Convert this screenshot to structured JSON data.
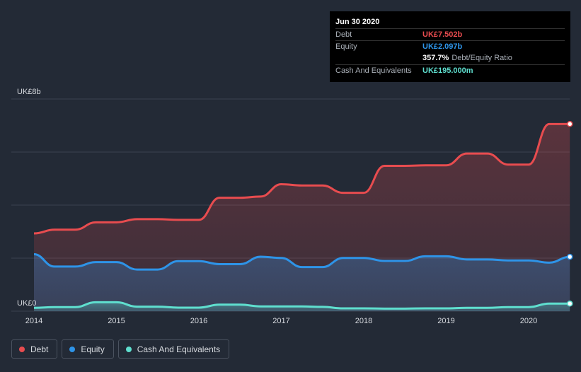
{
  "chart_data": {
    "type": "area",
    "y_axis": {
      "top_label": "UK£8b",
      "bottom_label": "UK£0",
      "ylim": [
        0,
        8
      ]
    },
    "x_ticks": [
      "2014",
      "2015",
      "2016",
      "2017",
      "2018",
      "2019",
      "2020"
    ],
    "series": [
      {
        "name": "Debt",
        "color": "#e84c4f",
        "points": [
          [
            2014.0,
            3.05
          ],
          [
            2014.25,
            3.2
          ],
          [
            2014.5,
            3.2
          ],
          [
            2014.75,
            3.5
          ],
          [
            2015.0,
            3.5
          ],
          [
            2015.25,
            3.63
          ],
          [
            2015.5,
            3.63
          ],
          [
            2015.75,
            3.6
          ],
          [
            2016.0,
            3.6
          ],
          [
            2016.25,
            4.5
          ],
          [
            2016.5,
            4.5
          ],
          [
            2016.75,
            4.55
          ],
          [
            2017.0,
            5.05
          ],
          [
            2017.25,
            5.0
          ],
          [
            2017.5,
            5.0
          ],
          [
            2017.75,
            4.7
          ],
          [
            2018.0,
            4.7
          ],
          [
            2018.25,
            5.8
          ],
          [
            2018.5,
            5.8
          ],
          [
            2018.75,
            5.82
          ],
          [
            2019.0,
            5.82
          ],
          [
            2019.25,
            6.3
          ],
          [
            2019.5,
            6.3
          ],
          [
            2019.75,
            5.85
          ],
          [
            2020.0,
            5.85
          ],
          [
            2020.25,
            7.5
          ],
          [
            2020.5,
            7.502
          ]
        ]
      },
      {
        "name": "Equity",
        "color": "#2e94e8",
        "points": [
          [
            2014.0,
            2.2
          ],
          [
            2014.25,
            1.7
          ],
          [
            2014.5,
            1.7
          ],
          [
            2014.75,
            1.88
          ],
          [
            2015.0,
            1.88
          ],
          [
            2015.25,
            1.58
          ],
          [
            2015.5,
            1.58
          ],
          [
            2015.75,
            1.92
          ],
          [
            2016.0,
            1.92
          ],
          [
            2016.25,
            1.8
          ],
          [
            2016.5,
            1.8
          ],
          [
            2016.75,
            2.1
          ],
          [
            2017.0,
            2.05
          ],
          [
            2017.25,
            1.68
          ],
          [
            2017.5,
            1.68
          ],
          [
            2017.75,
            2.05
          ],
          [
            2018.0,
            2.05
          ],
          [
            2018.25,
            1.93
          ],
          [
            2018.5,
            1.93
          ],
          [
            2018.75,
            2.12
          ],
          [
            2019.0,
            2.12
          ],
          [
            2019.25,
            1.99
          ],
          [
            2019.5,
            1.99
          ],
          [
            2019.75,
            1.95
          ],
          [
            2020.0,
            1.95
          ],
          [
            2020.25,
            1.86
          ],
          [
            2020.5,
            2.097
          ]
        ]
      },
      {
        "name": "Cash And Equivalents",
        "color": "#5fdfcf",
        "points": [
          [
            2014.0,
            0.02
          ],
          [
            2014.25,
            0.05
          ],
          [
            2014.5,
            0.05
          ],
          [
            2014.75,
            0.25
          ],
          [
            2015.0,
            0.25
          ],
          [
            2015.25,
            0.07
          ],
          [
            2015.5,
            0.07
          ],
          [
            2015.75,
            0.03
          ],
          [
            2016.0,
            0.03
          ],
          [
            2016.25,
            0.15
          ],
          [
            2016.5,
            0.15
          ],
          [
            2016.75,
            0.08
          ],
          [
            2017.0,
            0.08
          ],
          [
            2017.25,
            0.08
          ],
          [
            2017.5,
            0.06
          ],
          [
            2017.75,
            0.0
          ],
          [
            2018.0,
            0.0
          ],
          [
            2018.25,
            -0.01
          ],
          [
            2018.5,
            -0.01
          ],
          [
            2018.75,
            0.0
          ],
          [
            2019.0,
            0.0
          ],
          [
            2019.25,
            0.02
          ],
          [
            2019.5,
            0.02
          ],
          [
            2019.75,
            0.05
          ],
          [
            2020.0,
            0.05
          ],
          [
            2020.25,
            0.195
          ],
          [
            2020.5,
            0.195
          ]
        ]
      }
    ],
    "gridlines": true,
    "legend_position": "bottom-left"
  },
  "tooltip": {
    "date": "Jun 30 2020",
    "rows": [
      {
        "label": "Debt",
        "value": "UK£7.502b",
        "color": "#e84c4f"
      },
      {
        "label": "Equity",
        "value": "UK£2.097b",
        "color": "#2e94e8"
      }
    ],
    "ratio_pct": "357.7%",
    "ratio_label": "Debt/Equity Ratio",
    "cash_label": "Cash And Equivalents",
    "cash_value": "UK£195.000m",
    "cash_color": "#5fdfcf"
  },
  "legend": [
    {
      "label": "Debt",
      "color": "#e84c4f"
    },
    {
      "label": "Equity",
      "color": "#2e94e8"
    },
    {
      "label": "Cash And Equivalents",
      "color": "#5fdfcf"
    }
  ]
}
